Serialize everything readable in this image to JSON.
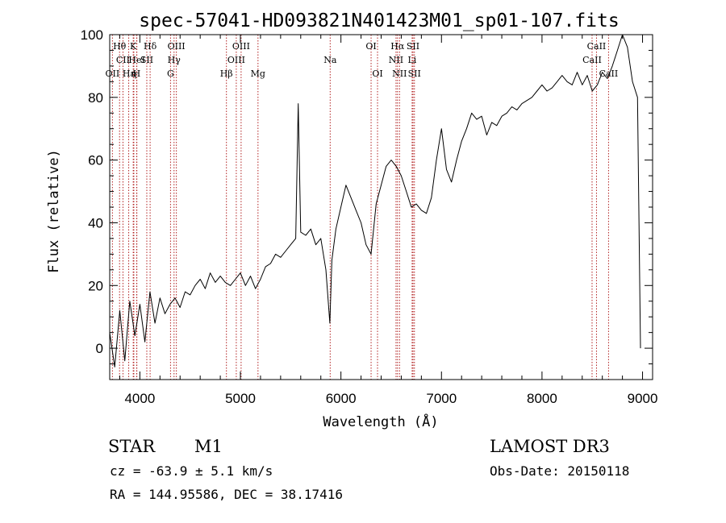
{
  "chart_data": {
    "type": "line",
    "title": "spec-57041-HD093821N401423M01_sp01-107.fits",
    "xlabel": "Wavelength (Å)",
    "ylabel": "Flux (relative)",
    "xlim": [
      3700,
      9100
    ],
    "ylim": [
      -10,
      100
    ],
    "xticks": [
      4000,
      5000,
      6000,
      7000,
      8000,
      9000
    ],
    "yticks": [
      0,
      20,
      40,
      60,
      80,
      100
    ],
    "grid": false,
    "series": [
      {
        "name": "spectrum",
        "color": "#000000",
        "x": [
          3700,
          3750,
          3800,
          3850,
          3900,
          3950,
          4000,
          4050,
          4100,
          4150,
          4200,
          4250,
          4300,
          4350,
          4400,
          4450,
          4500,
          4550,
          4600,
          4650,
          4700,
          4750,
          4800,
          4850,
          4900,
          4950,
          5000,
          5050,
          5100,
          5150,
          5200,
          5250,
          5300,
          5350,
          5400,
          5450,
          5500,
          5550,
          5575,
          5600,
          5650,
          5700,
          5750,
          5800,
          5850,
          5890,
          5910,
          5950,
          6000,
          6050,
          6100,
          6150,
          6200,
          6250,
          6300,
          6350,
          6400,
          6450,
          6500,
          6550,
          6600,
          6650,
          6700,
          6750,
          6800,
          6850,
          6900,
          6950,
          7000,
          7050,
          7100,
          7150,
          7200,
          7250,
          7300,
          7350,
          7400,
          7450,
          7500,
          7550,
          7600,
          7650,
          7700,
          7750,
          7800,
          7850,
          7900,
          7950,
          8000,
          8050,
          8100,
          8150,
          8200,
          8250,
          8300,
          8350,
          8400,
          8450,
          8500,
          8550,
          8600,
          8650,
          8700,
          8750,
          8800,
          8850,
          8900,
          8950,
          8980
        ],
        "values": [
          5,
          -6,
          12,
          -4,
          15,
          4,
          14,
          2,
          18,
          8,
          16,
          11,
          14,
          16,
          13,
          18,
          17,
          20,
          22,
          19,
          24,
          21,
          23,
          21,
          20,
          22,
          24,
          20,
          23,
          19,
          22,
          26,
          27,
          30,
          29,
          31,
          33,
          35,
          78,
          37,
          36,
          38,
          33,
          35,
          25,
          8,
          28,
          38,
          45,
          52,
          48,
          44,
          40,
          33,
          30,
          46,
          52,
          58,
          60,
          58,
          55,
          50,
          45,
          46,
          44,
          43,
          48,
          60,
          70,
          57,
          53,
          60,
          66,
          70,
          75,
          73,
          74,
          68,
          72,
          71,
          74,
          75,
          77,
          76,
          78,
          79,
          80,
          82,
          84,
          82,
          83,
          85,
          87,
          85,
          84,
          88,
          84,
          87,
          82,
          84,
          88,
          86,
          90,
          95,
          100,
          96,
          85,
          80,
          0
        ]
      }
    ],
    "spectral_lines": [
      {
        "label": "Hθ",
        "x": 3798,
        "row": 1
      },
      {
        "label": "CII",
        "x": 3832,
        "row": 2
      },
      {
        "label": "OII",
        "x": 3727,
        "row": 3
      },
      {
        "label": "Hε",
        "x": 3889,
        "row": 3
      },
      {
        "label": "K",
        "x": 3934,
        "row": 1
      },
      {
        "label": "HeI",
        "x": 3970,
        "row": 2
      },
      {
        "label": "η",
        "x": 3940,
        "row": 3
      },
      {
        "label": "H",
        "x": 3968,
        "row": 3
      },
      {
        "label": "Hδ",
        "x": 4102,
        "row": 1
      },
      {
        "label": "SII",
        "x": 4069,
        "row": 2
      },
      {
        "label": "OIII",
        "x": 4363,
        "row": 1
      },
      {
        "label": "Hγ",
        "x": 4340,
        "row": 2
      },
      {
        "label": "G",
        "x": 4305,
        "row": 3
      },
      {
        "label": "OIII",
        "x": 5007,
        "row": 1
      },
      {
        "label": "OIII",
        "x": 4959,
        "row": 2
      },
      {
        "label": "Hβ",
        "x": 4861,
        "row": 3
      },
      {
        "label": "Mg",
        "x": 5175,
        "row": 3
      },
      {
        "label": "Na",
        "x": 5893,
        "row": 2
      },
      {
        "label": "OI",
        "x": 6300,
        "row": 1
      },
      {
        "label": "OI",
        "x": 6364,
        "row": 3
      },
      {
        "label": "Hα",
        "x": 6563,
        "row": 1
      },
      {
        "label": "SII",
        "x": 6717,
        "row": 1
      },
      {
        "label": "NII",
        "x": 6548,
        "row": 2
      },
      {
        "label": "Li",
        "x": 6708,
        "row": 2
      },
      {
        "label": "NII",
        "x": 6583,
        "row": 3
      },
      {
        "label": "SII",
        "x": 6731,
        "row": 3
      },
      {
        "label": "CaII",
        "x": 8542,
        "row": 1
      },
      {
        "label": "CaII",
        "x": 8498,
        "row": 2
      },
      {
        "label": "CaII",
        "x": 8662,
        "row": 3
      }
    ]
  },
  "info": {
    "object_class": "STAR",
    "subclass": "M1",
    "survey": "LAMOST DR3",
    "redshift": "cz = -63.9 ± 5.1 km/s",
    "obs_date": "Obs-Date: 20150118",
    "coordinates": "RA = 144.95586, DEC =  38.17416"
  },
  "colors": {
    "line_marker": "#b22222",
    "spectrum": "#000000",
    "axes": "#000000"
  }
}
